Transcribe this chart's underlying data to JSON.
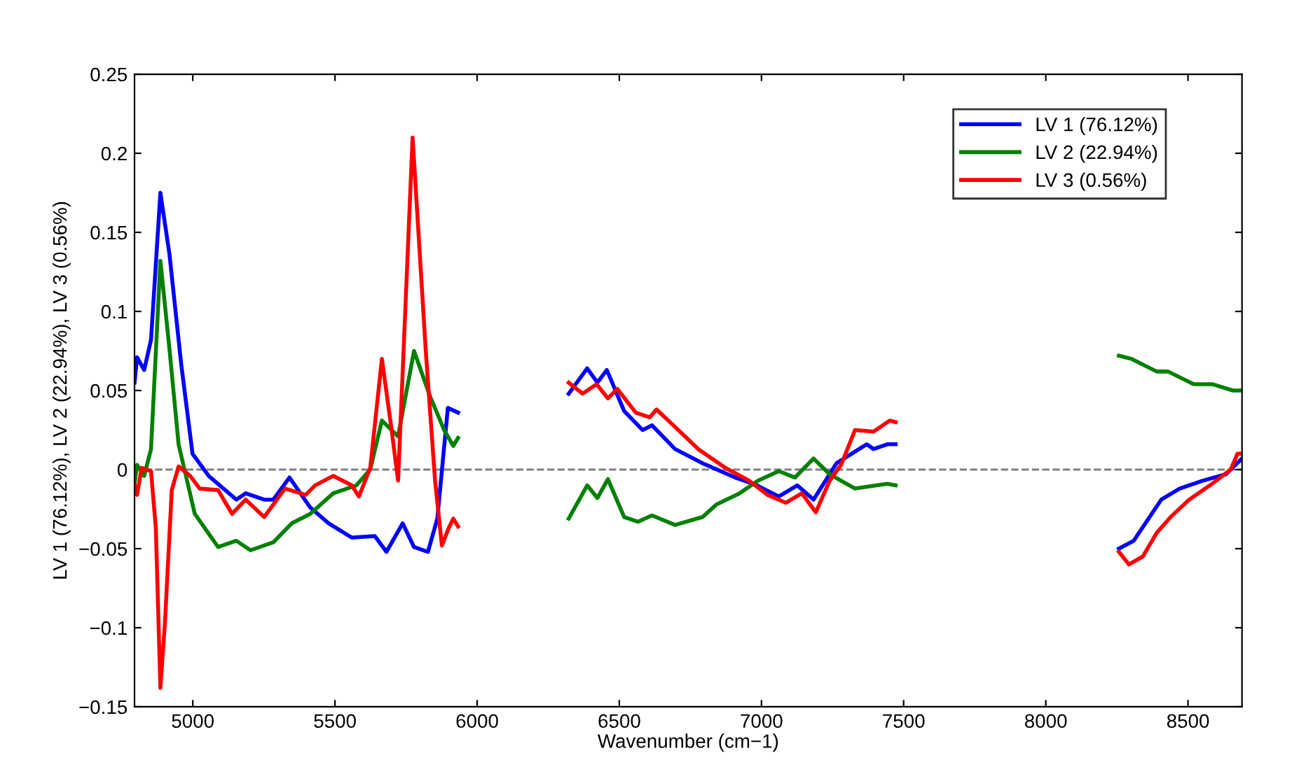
{
  "chart_data": {
    "type": "line",
    "xlabel": "Wavenumber (cm−1)",
    "ylabel": "LV 1 (76.12%), LV 2 (22.94%), LV 3 (0.56%)",
    "xlim": [
      4795,
      8690
    ],
    "ylim": [
      -0.15,
      0.25
    ],
    "xticks": [
      5000,
      5500,
      6000,
      6500,
      7000,
      7500,
      8000,
      8500
    ],
    "yticks": [
      {
        "value": -0.15,
        "label": "−0.15"
      },
      {
        "value": -0.1,
        "label": "−0.1"
      },
      {
        "value": -0.05,
        "label": "−0.05"
      },
      0,
      0.05,
      0.1,
      0.15,
      0.2,
      0.25
    ],
    "grid": false,
    "legend": "top right",
    "line_style": "solid",
    "marker": "none",
    "ref_lines": [
      {
        "axis": "y",
        "value": 0,
        "color": "#808080",
        "line_style": "dashed"
      }
    ],
    "series": [
      {
        "name": "LV 1 (76.12%)",
        "color": "#0000ff",
        "x": [
          4795,
          4804,
          4829,
          4853,
          4886,
          4918,
          4959,
          4999,
          5056,
          5153,
          5186,
          5251,
          5283,
          5340,
          5413,
          5478,
          5559,
          5640,
          5681,
          5738,
          5778,
          5827,
          5860,
          5897,
          5933,
          6100,
          6322,
          6387,
          6423,
          6456,
          6517,
          6582,
          6615,
          6696,
          6793,
          6907,
          6972,
          7061,
          7126,
          7183,
          7264,
          7370,
          7394,
          7443,
          7472,
          7900,
          8257,
          8309,
          8406,
          8471,
          8552,
          8633,
          8690
        ],
        "values": [
          0.055,
          0.071,
          0.063,
          0.082,
          0.175,
          0.136,
          0.067,
          0.01,
          -0.004,
          -0.019,
          -0.015,
          -0.019,
          -0.019,
          -0.005,
          -0.024,
          -0.034,
          -0.043,
          -0.042,
          -0.052,
          -0.034,
          -0.049,
          -0.052,
          -0.031,
          0.039,
          0.036,
          null,
          0.048,
          0.064,
          0.055,
          0.063,
          0.037,
          0.025,
          0.028,
          0.013,
          0.004,
          -0.005,
          -0.009,
          -0.017,
          -0.01,
          -0.019,
          0.004,
          0.016,
          0.013,
          0.016,
          0.016,
          null,
          -0.05,
          -0.045,
          -0.019,
          -0.012,
          -0.007,
          -0.003,
          0.007
        ]
      },
      {
        "name": "LV 2 (22.94%)",
        "color": "#008000",
        "x": [
          4795,
          4804,
          4829,
          4853,
          4886,
          4918,
          4950,
          5007,
          5089,
          5153,
          5203,
          5283,
          5348,
          5413,
          5494,
          5575,
          5624,
          5665,
          5722,
          5778,
          5835,
          5884,
          5916,
          5933,
          6100,
          6322,
          6387,
          6423,
          6460,
          6517,
          6566,
          6615,
          6696,
          6793,
          6842,
          6923,
          6988,
          7061,
          7118,
          7183,
          7240,
          7329,
          7443,
          7472,
          7900,
          8257,
          8301,
          8390,
          8430,
          8520,
          8585,
          8658,
          8690
        ],
        "values": [
          -0.009,
          0.003,
          -0.004,
          0.013,
          0.132,
          0.076,
          0.016,
          -0.028,
          -0.049,
          -0.045,
          -0.051,
          -0.046,
          -0.034,
          -0.028,
          -0.015,
          -0.01,
          0.0,
          0.031,
          0.021,
          0.075,
          0.046,
          0.025,
          0.015,
          0.02,
          null,
          -0.031,
          -0.01,
          -0.018,
          -0.006,
          -0.03,
          -0.033,
          -0.029,
          -0.035,
          -0.03,
          -0.022,
          -0.015,
          -0.007,
          -0.001,
          -0.005,
          0.007,
          -0.003,
          -0.012,
          -0.009,
          -0.01,
          null,
          0.072,
          0.07,
          0.062,
          0.062,
          0.054,
          0.054,
          0.05,
          0.05
        ]
      },
      {
        "name": "LV 3 (0.56%)",
        "color": "#ff0000",
        "x": [
          4795,
          4804,
          4820,
          4853,
          4870,
          4886,
          4902,
          4926,
          4950,
          4991,
          5024,
          5089,
          5138,
          5186,
          5251,
          5324,
          5397,
          5430,
          5494,
          5559,
          5584,
          5624,
          5665,
          5697,
          5722,
          5773,
          5819,
          5852,
          5876,
          5900,
          5916,
          5933,
          6100,
          6322,
          6371,
          6420,
          6460,
          6493,
          6558,
          6607,
          6631,
          6696,
          6777,
          6874,
          6956,
          7021,
          7086,
          7142,
          7191,
          7240,
          7280,
          7329,
          7394,
          7451,
          7472,
          7900,
          8257,
          8292,
          8341,
          8390,
          8439,
          8504,
          8585,
          8650,
          8674,
          8690
        ],
        "values": [
          -0.009,
          -0.016,
          0.001,
          -0.001,
          -0.037,
          -0.138,
          -0.097,
          -0.013,
          0.002,
          -0.004,
          -0.012,
          -0.013,
          -0.028,
          -0.019,
          -0.03,
          -0.012,
          -0.016,
          -0.01,
          -0.004,
          -0.01,
          -0.017,
          0.001,
          0.07,
          0.028,
          -0.007,
          0.21,
          0.076,
          -0.007,
          -0.048,
          -0.037,
          -0.031,
          -0.036,
          null,
          0.055,
          0.048,
          0.054,
          0.045,
          0.051,
          0.036,
          0.033,
          0.038,
          0.027,
          0.013,
          0.001,
          -0.007,
          -0.016,
          -0.021,
          -0.015,
          -0.027,
          -0.007,
          0.003,
          0.025,
          0.024,
          0.031,
          0.03,
          null,
          -0.052,
          -0.06,
          -0.055,
          -0.04,
          -0.03,
          -0.019,
          -0.009,
          0.0,
          0.01,
          0.01
        ]
      }
    ]
  }
}
